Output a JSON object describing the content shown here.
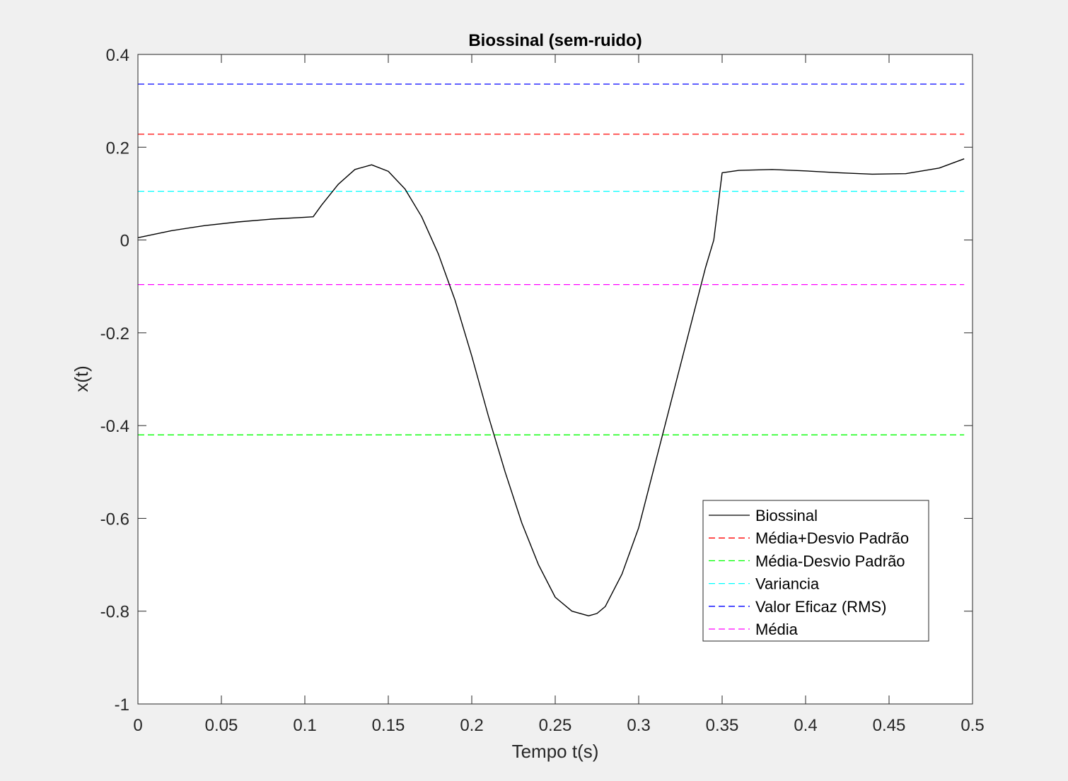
{
  "chart_data": {
    "type": "line",
    "title": "Biossinal (sem-ruido)",
    "xlabel": "Tempo t(s)",
    "ylabel": "x(t)",
    "xlim": [
      0,
      0.5
    ],
    "ylim": [
      -1,
      0.4
    ],
    "xticks": [
      0,
      0.05,
      0.1,
      0.15,
      0.2,
      0.25,
      0.3,
      0.35,
      0.4,
      0.45,
      0.5
    ],
    "xtick_labels": [
      "0",
      "0.05",
      "0.1",
      "0.15",
      "0.2",
      "0.25",
      "0.3",
      "0.35",
      "0.4",
      "0.45",
      "0.5"
    ],
    "yticks": [
      -1,
      -0.8,
      -0.6,
      -0.4,
      -0.2,
      0,
      0.2,
      0.4
    ],
    "ytick_labels": [
      "-1",
      "-0.8",
      "-0.6",
      "-0.4",
      "-0.2",
      "0",
      "0.2",
      "0.4"
    ],
    "grid": false,
    "legend_position": "bottom-right",
    "series": [
      {
        "name": "Biossinal",
        "color": "#000000",
        "style": "solid",
        "x": [
          0,
          0.02,
          0.04,
          0.06,
          0.08,
          0.1,
          0.105,
          0.11,
          0.12,
          0.13,
          0.14,
          0.15,
          0.16,
          0.17,
          0.18,
          0.19,
          0.2,
          0.21,
          0.22,
          0.23,
          0.24,
          0.25,
          0.26,
          0.27,
          0.275,
          0.28,
          0.29,
          0.3,
          0.31,
          0.32,
          0.33,
          0.34,
          0.345,
          0.35,
          0.36,
          0.38,
          0.4,
          0.42,
          0.44,
          0.46,
          0.48,
          0.495
        ],
        "y": [
          0.005,
          0.02,
          0.031,
          0.039,
          0.045,
          0.049,
          0.05,
          0.075,
          0.12,
          0.152,
          0.162,
          0.148,
          0.11,
          0.05,
          -0.03,
          -0.13,
          -0.25,
          -0.38,
          -0.5,
          -0.61,
          -0.7,
          -0.77,
          -0.8,
          -0.81,
          -0.805,
          -0.79,
          -0.72,
          -0.62,
          -0.48,
          -0.34,
          -0.2,
          -0.06,
          0.0,
          0.145,
          0.15,
          0.152,
          0.149,
          0.145,
          0.142,
          0.143,
          0.155,
          0.175
        ]
      },
      {
        "name": "Média+Desvio Padrão",
        "color": "#ff0000",
        "style": "dashed",
        "x": [
          0,
          0.495
        ],
        "y": [
          0.228,
          0.228
        ]
      },
      {
        "name": "Média-Desvio Padrão",
        "color": "#00ff00",
        "style": "dashed",
        "x": [
          0,
          0.495
        ],
        "y": [
          -0.42,
          -0.42
        ]
      },
      {
        "name": "Variancia",
        "color": "#00ffff",
        "style": "dashed",
        "x": [
          0,
          0.495
        ],
        "y": [
          0.105,
          0.105
        ]
      },
      {
        "name": "Valor Eficaz (RMS)",
        "color": "#0000ff",
        "style": "dashed",
        "x": [
          0,
          0.495
        ],
        "y": [
          0.336,
          0.336
        ]
      },
      {
        "name": "Média",
        "color": "#ff00ff",
        "style": "dashed",
        "x": [
          0,
          0.495
        ],
        "y": [
          -0.096,
          -0.096
        ]
      }
    ]
  }
}
